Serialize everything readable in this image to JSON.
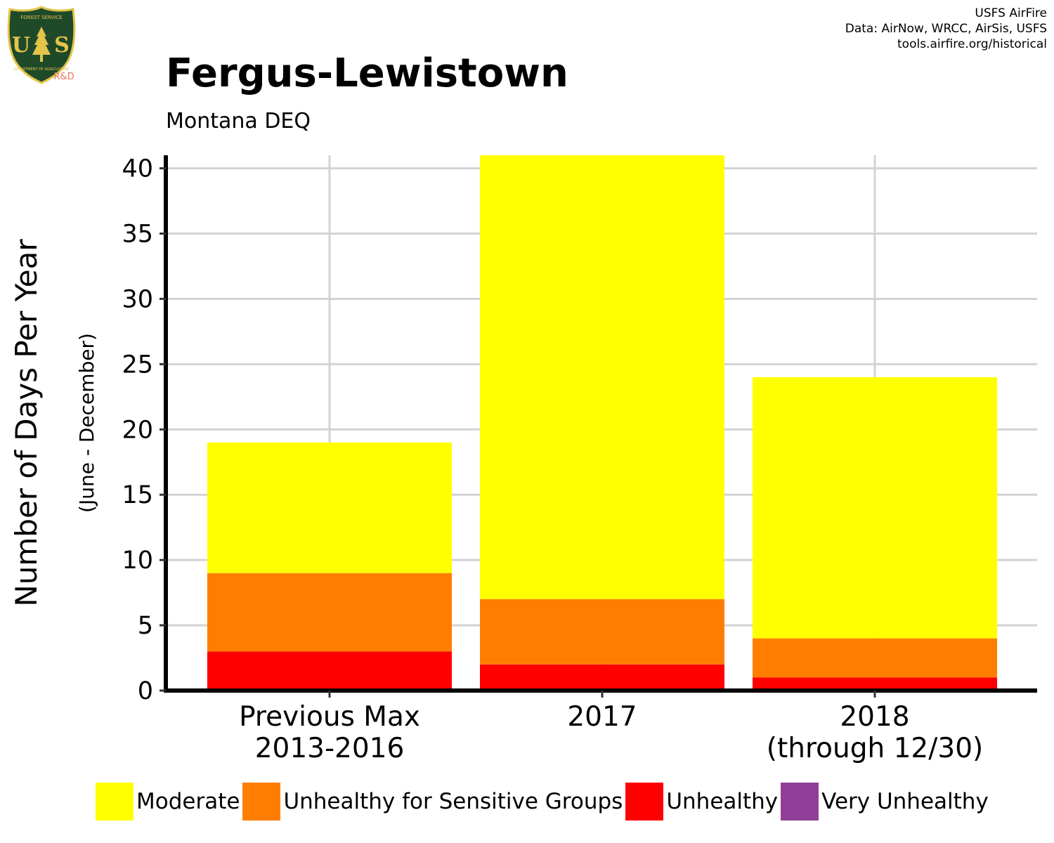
{
  "logo": {
    "top_text": "FOREST SERVICE",
    "letters": "U S",
    "bottom_text": "DEPARTMENT OF AGRICULTURE",
    "badge": "R&D"
  },
  "credits": [
    "USFS AirFire",
    "Data: AirNow, WRCC, AirSis, USFS",
    "tools.airfire.org/historical"
  ],
  "colors": {
    "moderate": "#FFFF00",
    "usg": "#FF7E00",
    "unhealthy": "#FF0000",
    "very_unhealthy": "#8F3F97",
    "grid": "#D3D3D3",
    "logo_green": "#1F4A2A",
    "logo_gold": "#E5C44A",
    "badge": "#E8765A"
  },
  "chart_data": {
    "type": "bar",
    "stacked": true,
    "title": "Fergus-Lewistown",
    "subtitle": "Montana DEQ",
    "ylabel": "Number of Days Per Year",
    "ylabel_sub": "(June - December)",
    "categories": [
      [
        "Previous Max",
        "2013-2016"
      ],
      [
        "2017"
      ],
      [
        "2018",
        "(through 12/30)"
      ]
    ],
    "yticks": [
      0,
      5,
      10,
      15,
      20,
      25,
      30,
      35,
      40
    ],
    "ylim": [
      0,
      41
    ],
    "grid": true,
    "legend_position": "bottom",
    "series": [
      {
        "name": "Moderate",
        "color": "#FFFF00",
        "values": [
          10,
          34,
          20
        ]
      },
      {
        "name": "Unhealthy for Sensitive Groups",
        "color": "#FF7E00",
        "values": [
          6,
          5,
          3
        ]
      },
      {
        "name": "Unhealthy",
        "color": "#FF0000",
        "values": [
          3,
          2,
          1
        ]
      },
      {
        "name": "Very Unhealthy",
        "color": "#8F3F97",
        "values": [
          0,
          0,
          0
        ]
      }
    ]
  }
}
